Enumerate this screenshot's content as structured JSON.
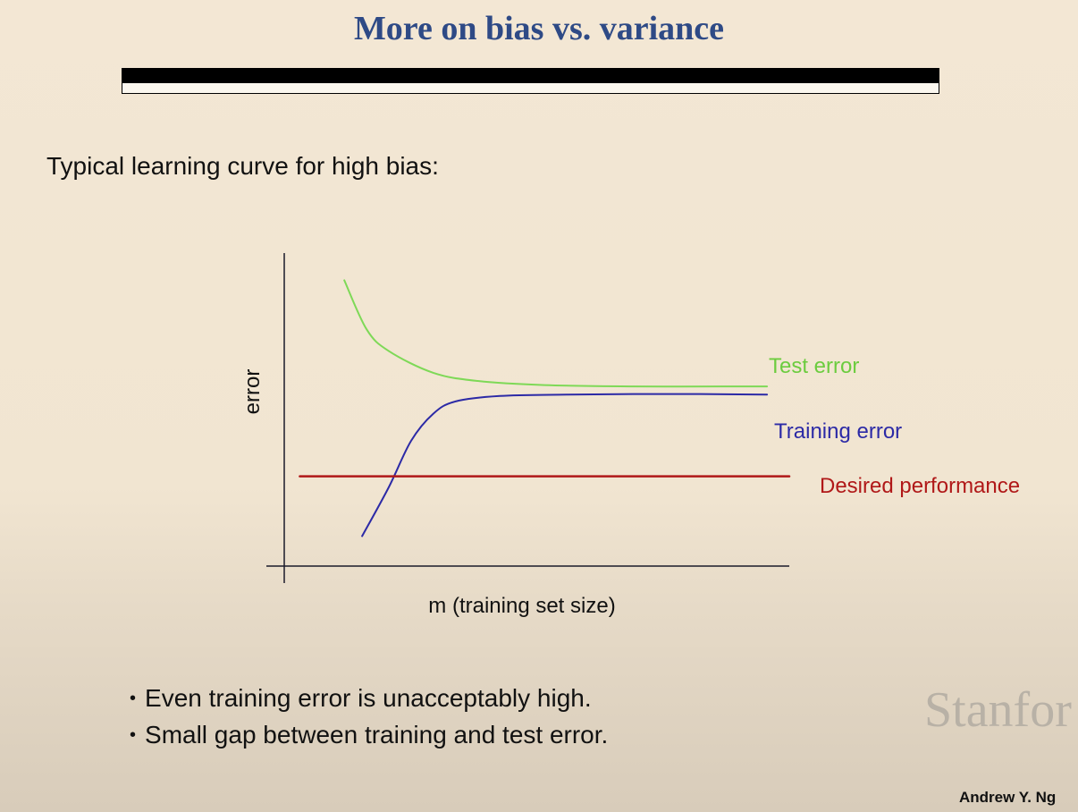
{
  "slide": {
    "title": "More on bias vs. variance",
    "subtitle": "Typical learning curve for high bias:",
    "bullets": [
      "Even training error is unacceptably high.",
      "Small gap between training and test error."
    ],
    "watermark": "Stanfor",
    "author": "Andrew Y. Ng"
  },
  "chart_data": {
    "type": "line",
    "title": "",
    "xlabel": "m (training set size)",
    "ylabel": "error",
    "grid": false,
    "legend": "inline labels at right end of each line",
    "series": [
      {
        "name": "Test error",
        "color": "#7ed957",
        "x": [
          1,
          2,
          3,
          5,
          7,
          10,
          14,
          18,
          20
        ],
        "y": [
          10.5,
          8.7,
          7.9,
          7.1,
          6.8,
          6.65,
          6.6,
          6.6,
          6.6
        ]
      },
      {
        "name": "Training error",
        "color": "#2c2aa6",
        "x": [
          1.8,
          3,
          4,
          5,
          6,
          8,
          11,
          14,
          17,
          20
        ],
        "y": [
          1.1,
          2.9,
          4.6,
          5.6,
          6.05,
          6.25,
          6.3,
          6.32,
          6.32,
          6.3
        ]
      },
      {
        "name": "Desired performance",
        "color": "#b01818",
        "x": [
          -1,
          21
        ],
        "y": [
          3.3,
          3.3
        ]
      }
    ],
    "xlim": [
      -1.7,
      21
    ],
    "ylim": [
      0,
      11.5
    ]
  }
}
